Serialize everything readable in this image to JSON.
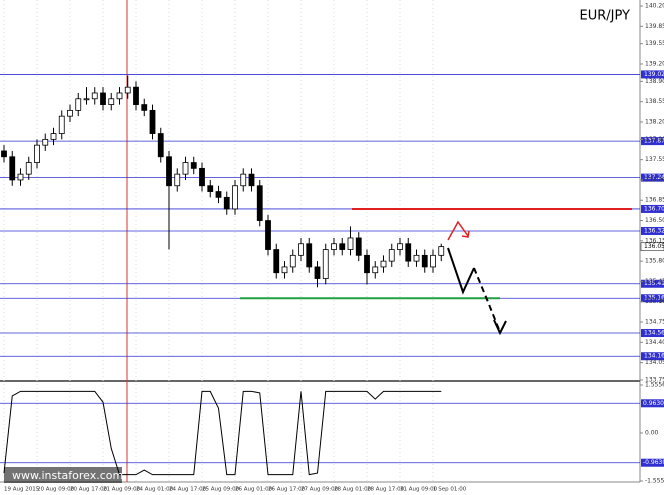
{
  "chart_data": {
    "type": "candlestick",
    "title": "EUR/JPY",
    "watermark": "www.instaforex.com",
    "categories": [
      "19 Aug 2015",
      "20 Aug 09:00",
      "20 Aug 17:00",
      "21 Aug 09:00",
      "24 Aug 01:00",
      "24 Aug 17:00",
      "25 Aug 09:00",
      "26 Aug 01:00",
      "26 Aug 17:00",
      "27 Aug 09:00",
      "28 Aug 01:00",
      "28 Aug 17:00",
      "31 Aug 09:00",
      "1 Sep 01:00"
    ],
    "open": [
      137.7,
      137.6,
      137.2,
      137.3,
      137.5,
      137.8,
      137.9,
      138.0,
      138.3,
      138.4,
      138.6,
      138.6,
      138.7,
      138.5,
      138.6,
      138.7,
      138.8,
      138.5,
      138.4,
      138.0,
      137.6,
      137.1,
      137.3,
      137.5,
      137.4,
      137.1,
      137.0,
      136.9,
      136.7,
      137.1,
      137.3,
      137.1,
      136.5,
      136.0,
      135.6,
      135.7,
      135.9,
      136.1,
      135.7,
      135.5,
      136.0,
      136.1,
      136.0,
      136.2,
      135.9,
      135.6,
      135.7,
      135.8,
      136.0,
      136.1,
      135.8,
      135.9,
      135.7,
      135.9
    ],
    "high": [
      137.8,
      137.7,
      137.4,
      137.6,
      137.9,
      138.0,
      138.1,
      138.4,
      138.5,
      138.7,
      138.8,
      138.8,
      138.8,
      138.7,
      138.8,
      139.0,
      138.9,
      138.6,
      138.5,
      138.1,
      137.7,
      137.4,
      137.6,
      137.6,
      137.5,
      137.2,
      137.1,
      137.0,
      137.2,
      137.4,
      137.4,
      137.2,
      136.6,
      136.1,
      135.8,
      136.0,
      136.2,
      136.2,
      135.8,
      136.1,
      136.2,
      136.2,
      136.4,
      136.3,
      136.0,
      135.8,
      135.9,
      136.1,
      136.2,
      136.2,
      136.0,
      136.0,
      136.0,
      136.1
    ],
    "low": [
      137.5,
      137.1,
      137.1,
      137.2,
      137.4,
      137.7,
      137.8,
      137.9,
      138.2,
      138.3,
      138.5,
      138.5,
      138.4,
      138.4,
      138.5,
      138.6,
      138.4,
      138.3,
      137.9,
      137.5,
      136.0,
      137.0,
      137.2,
      137.3,
      137.0,
      136.9,
      136.8,
      136.6,
      136.6,
      137.0,
      137.0,
      136.4,
      135.9,
      135.5,
      135.5,
      135.6,
      135.8,
      135.6,
      135.35,
      135.4,
      135.9,
      135.9,
      135.9,
      135.8,
      135.4,
      135.5,
      135.6,
      135.7,
      135.9,
      135.7,
      135.7,
      135.6,
      135.6,
      135.8
    ],
    "close": [
      137.6,
      137.2,
      137.3,
      137.5,
      137.8,
      137.9,
      138.0,
      138.3,
      138.4,
      138.6,
      138.6,
      138.7,
      138.5,
      138.6,
      138.7,
      138.8,
      138.5,
      138.4,
      138.0,
      137.6,
      137.1,
      137.3,
      137.5,
      137.4,
      137.1,
      137.0,
      136.9,
      136.7,
      137.1,
      137.3,
      137.1,
      136.5,
      136.0,
      135.6,
      135.7,
      135.9,
      136.1,
      135.7,
      135.5,
      136.0,
      136.1,
      136.0,
      136.2,
      135.9,
      135.6,
      135.7,
      135.8,
      136.0,
      136.1,
      135.8,
      135.9,
      135.7,
      135.9,
      136.05
    ],
    "current_price": 136.05,
    "ylim": [
      133.75,
      140.2
    ],
    "yticks": [
      {
        "value": 140.2,
        "label": "140.20"
      },
      139.85,
      139.55,
      {
        "value": 139.2,
        "label": "139.20"
      },
      {
        "value": 138.9,
        "label": "138.90"
      },
      138.55,
      {
        "value": 138.2,
        "label": "138.20"
      },
      {
        "value": 137.9,
        "label": "137.90"
      },
      137.55,
      {
        "value": 137.2,
        "label": "137.20"
      },
      136.85,
      {
        "value": 136.5,
        "label": "136.50"
      },
      136.15,
      {
        "value": 135.8,
        "label": "135.80"
      },
      135.45,
      {
        "value": 135.1,
        "label": "135.10"
      },
      134.75,
      {
        "value": 134.4,
        "label": "134.40"
      },
      134.05,
      133.75
    ],
    "levels": [
      139.02,
      137.87,
      137.24,
      {
        "value": 136.7,
        "label": "136.70"
      },
      136.32,
      135.41,
      135.16,
      134.56,
      134.16
    ],
    "resistance_color": "#e02020",
    "support_color": "#20a040",
    "level_color": "#3030d0",
    "indicator": {
      "values": [
        -1.3,
        1.2,
        1.35,
        1.35,
        1.35,
        1.35,
        1.35,
        1.35,
        1.35,
        1.35,
        1.35,
        1.35,
        1.0,
        -0.5,
        -1.35,
        -1.35,
        -1.35,
        -1.2,
        -1.35,
        -1.35,
        -1.35,
        -1.35,
        -1.35,
        -1.35,
        1.35,
        1.35,
        0.8,
        -1.35,
        -1.35,
        1.35,
        1.35,
        1.3,
        -1.35,
        -1.35,
        -1.35,
        -1.35,
        1.35,
        -1.35,
        -1.3,
        1.35,
        1.35,
        1.35,
        1.35,
        1.35,
        1.35,
        1.1,
        1.35,
        1.35,
        1.35,
        1.35,
        1.35,
        1.35,
        1.35,
        1.35
      ],
      "ylim": [
        -1.5556,
        1.5556
      ],
      "yticks": [
        1.5556,
        {
          "value": 0.963,
          "label": "0.9630"
        },
        {
          "value": 0,
          "label": "0.00"
        },
        {
          "value": -0.963,
          "label": "-0.9630"
        },
        -1.5556
      ],
      "color": "#000000"
    }
  }
}
